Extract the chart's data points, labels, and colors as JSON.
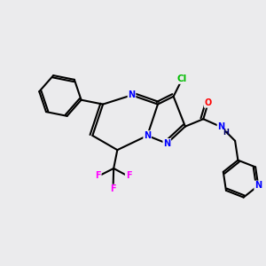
{
  "background_color": "#ebebed",
  "bond_color": "#000000",
  "atom_colors": {
    "N": "#0000ff",
    "O": "#ff0000",
    "Cl": "#00bb00",
    "F": "#ff00ff",
    "H": "#000066",
    "C": "#000000"
  },
  "figsize": [
    3.0,
    3.0
  ],
  "dpi": 100
}
